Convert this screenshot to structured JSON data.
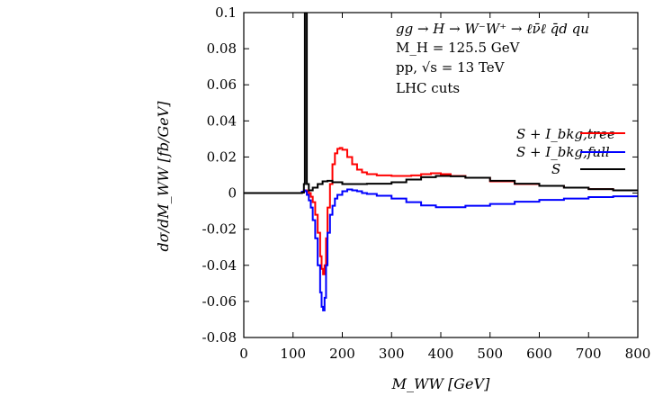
{
  "chart_data": {
    "type": "line",
    "title": "",
    "xlabel": "M_WW [GeV]",
    "ylabel": "dσ/dM_WW [fb/GeV]",
    "xlim": [
      0,
      800
    ],
    "ylim": [
      -0.08,
      0.1
    ],
    "x_ticks": [
      "0",
      "100",
      "200",
      "300",
      "400",
      "500",
      "600",
      "700",
      "800"
    ],
    "y_ticks": [
      "0.1",
      "0.08",
      "0.06",
      "0.04",
      "0.02",
      "0",
      "-0.02",
      "-0.04",
      "-0.06",
      "-0.08"
    ],
    "annotations": [
      "gg → H → W⁻W⁺ → ℓν̄ℓ q̄d qu",
      "M_H = 125.5 GeV",
      "pp, √s = 13 TeV",
      "LHC cuts"
    ],
    "legend_position": "upper-right",
    "series": [
      {
        "name": "S + I_bkg,tree",
        "color": "#ff0000",
        "x": [
          0,
          110,
          118,
          122,
          125,
          128,
          132,
          136,
          140,
          145,
          150,
          155,
          158,
          161,
          164,
          167,
          170,
          175,
          180,
          185,
          190,
          195,
          200,
          210,
          220,
          230,
          240,
          250,
          270,
          300,
          320,
          340,
          360,
          380,
          400,
          420,
          450,
          500,
          550,
          600,
          650,
          700,
          750,
          800
        ],
        "values": [
          0,
          0,
          0.0005,
          0.001,
          0.0015,
          0.001,
          0,
          -0.002,
          -0.005,
          -0.012,
          -0.022,
          -0.035,
          -0.042,
          -0.045,
          -0.04,
          -0.025,
          -0.008,
          0.005,
          0.016,
          0.022,
          0.0245,
          0.025,
          0.024,
          0.02,
          0.016,
          0.013,
          0.0115,
          0.0105,
          0.0098,
          0.0095,
          0.0095,
          0.0098,
          0.0105,
          0.011,
          0.0105,
          0.0095,
          0.0085,
          0.0065,
          0.005,
          0.004,
          0.003,
          0.0022,
          0.0015,
          0.001
        ]
      },
      {
        "name": "S + I_bkg,full",
        "color": "#0000ff",
        "x": [
          0,
          110,
          118,
          122,
          125,
          128,
          132,
          136,
          140,
          145,
          150,
          155,
          158,
          161,
          164,
          167,
          170,
          175,
          180,
          185,
          190,
          200,
          210,
          220,
          230,
          240,
          250,
          270,
          300,
          330,
          360,
          390,
          420,
          450,
          500,
          550,
          600,
          650,
          700,
          750,
          800
        ],
        "values": [
          0,
          0,
          0.0008,
          0.0015,
          0.001,
          -0.001,
          -0.004,
          -0.008,
          -0.015,
          -0.025,
          -0.04,
          -0.055,
          -0.063,
          -0.065,
          -0.058,
          -0.04,
          -0.022,
          -0.012,
          -0.007,
          -0.003,
          -0.001,
          0.001,
          0.002,
          0.0015,
          0.001,
          0.0,
          -0.0005,
          -0.0015,
          -0.003,
          -0.005,
          -0.0068,
          -0.0078,
          -0.0078,
          -0.007,
          -0.006,
          -0.0048,
          -0.0038,
          -0.003,
          -0.0022,
          -0.0018,
          -0.0012
        ]
      },
      {
        "name": "S",
        "color": "#000000",
        "x": [
          0,
          110,
          118,
          122,
          124,
          125,
          126,
          128,
          132,
          140,
          150,
          160,
          170,
          180,
          200,
          250,
          300,
          330,
          360,
          390,
          420,
          450,
          500,
          550,
          600,
          650,
          700,
          750,
          800
        ],
        "values": [
          0,
          0,
          0.0003,
          0.005,
          0.1,
          0.1,
          0.1,
          0.005,
          0.0015,
          0.003,
          0.005,
          0.0065,
          0.0068,
          0.006,
          0.005,
          0.0052,
          0.006,
          0.0075,
          0.0088,
          0.0095,
          0.0093,
          0.0085,
          0.0068,
          0.0052,
          0.004,
          0.003,
          0.0022,
          0.0015,
          0.001
        ]
      }
    ]
  }
}
